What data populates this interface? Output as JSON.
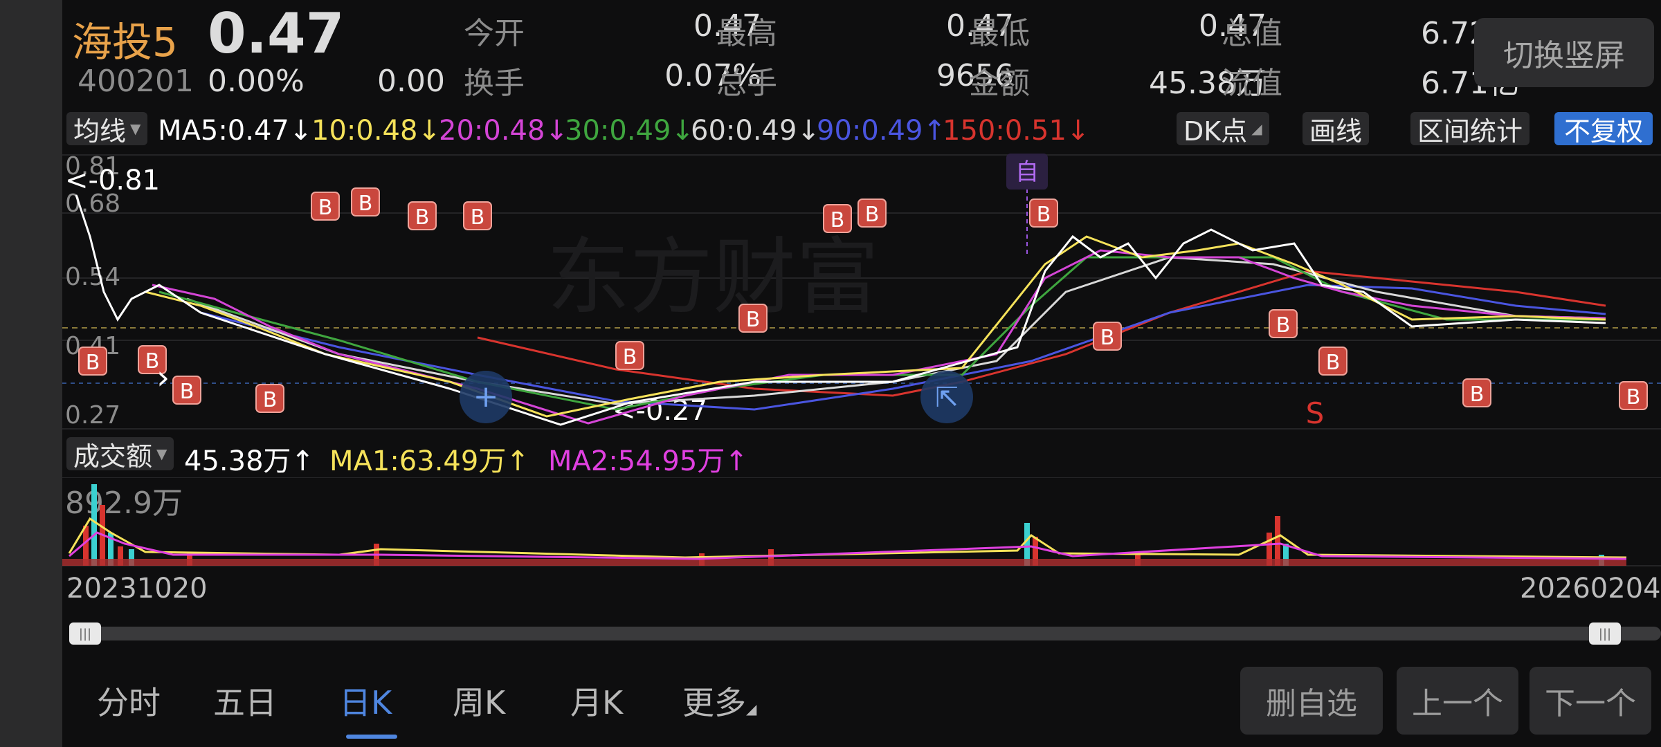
{
  "header": {
    "name": "海投5",
    "price": "0.47",
    "code": "400201",
    "change_pct": "0.00%",
    "change": "0.00",
    "quotes": [
      {
        "label": "今开",
        "value": "0.47"
      },
      {
        "label": "最高",
        "value": "0.47"
      },
      {
        "label": "最低",
        "value": "0.47"
      },
      {
        "label": "总值",
        "value": "6.72亿"
      },
      {
        "label": "换手",
        "value": "0.07%"
      },
      {
        "label": "总手",
        "value": "9656"
      },
      {
        "label": "金额",
        "value": "45.38万"
      },
      {
        "label": "流值",
        "value": "6.71亿"
      }
    ],
    "toggle_label": "切换竖屏"
  },
  "ma_bar": {
    "selector": "均线",
    "items": [
      {
        "text": "MA5:0.47↓",
        "color": "#ffffff"
      },
      {
        "text": "10:0.48↓",
        "color": "#f5e25a"
      },
      {
        "text": "20:0.48↓",
        "color": "#d445d6"
      },
      {
        "text": "30:0.49↓",
        "color": "#3fa63f"
      },
      {
        "text": "60:0.49↓",
        "color": "#d8d8d8"
      },
      {
        "text": "90:0.49↑",
        "color": "#4a55e0"
      },
      {
        "text": "150:0.51↓",
        "color": "#d8342e"
      }
    ],
    "dk_label": "DK点",
    "draw_label": "画线",
    "range_label": "区间统计",
    "adjust_label": "不复权"
  },
  "chart": {
    "y_ticks": [
      "0.81",
      "0.68",
      "0.54",
      "0.41",
      "0.27"
    ],
    "max_note": "<-0.81",
    "min_note": "<-0.27",
    "self_marker": "自",
    "buy_marker": "B",
    "sell_marker": "S",
    "watermark": "东方财富"
  },
  "volume": {
    "selector": "成交额",
    "value": "45.38万↑",
    "ma1": "MA1:63.49万↑",
    "ma2": "MA2:54.95万↑",
    "max_label": "892.9万"
  },
  "range": {
    "start": "20231020",
    "end": "20260204"
  },
  "tabs": [
    "分时",
    "五日",
    "日K",
    "周K",
    "月K",
    "更多"
  ],
  "active_tab": "日K",
  "buttons": {
    "remove": "删自选",
    "prev": "上一个",
    "next": "下一个"
  },
  "colors": {
    "accent": "#4f86e0",
    "up": "#d8342e",
    "name": "#e8a24a"
  }
}
